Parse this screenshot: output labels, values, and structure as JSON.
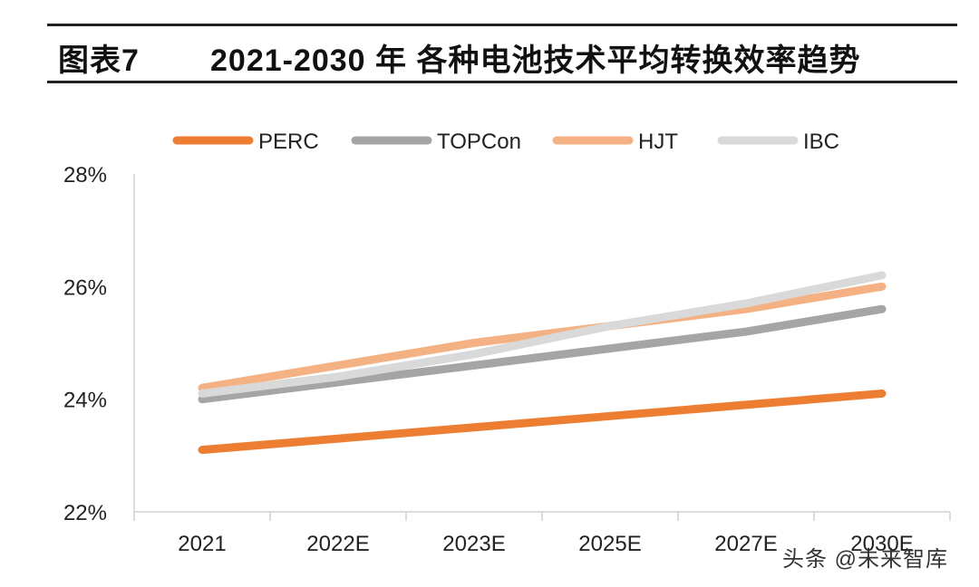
{
  "figure": {
    "label": "图表7",
    "title": "2021-2030 年 各种电池技术平均转换效率趋势"
  },
  "watermark": "头条 @未来智库",
  "chart_data": {
    "type": "line",
    "categories": [
      "2021",
      "2022E",
      "2023E",
      "2025E",
      "2027E",
      "2030E"
    ],
    "ylim": [
      22,
      28
    ],
    "yticks": [
      "22%",
      "24%",
      "26%",
      "28%"
    ],
    "ytick_values": [
      22,
      24,
      26,
      28
    ],
    "grid": false,
    "legend_position": "top",
    "series": [
      {
        "name": "PERC",
        "color": "#ED7D31",
        "values": [
          23.1,
          23.3,
          23.5,
          23.7,
          23.9,
          24.1
        ]
      },
      {
        "name": "TOPCon",
        "color": "#A5A5A5",
        "values": [
          24.0,
          24.3,
          24.6,
          24.9,
          25.2,
          25.6
        ]
      },
      {
        "name": "HJT",
        "color": "#F4B183",
        "values": [
          24.2,
          24.6,
          25.0,
          25.3,
          25.6,
          26.0
        ]
      },
      {
        "name": "IBC",
        "color": "#D9D9D9",
        "values": [
          24.1,
          24.4,
          24.8,
          25.3,
          25.7,
          26.2
        ]
      }
    ]
  }
}
